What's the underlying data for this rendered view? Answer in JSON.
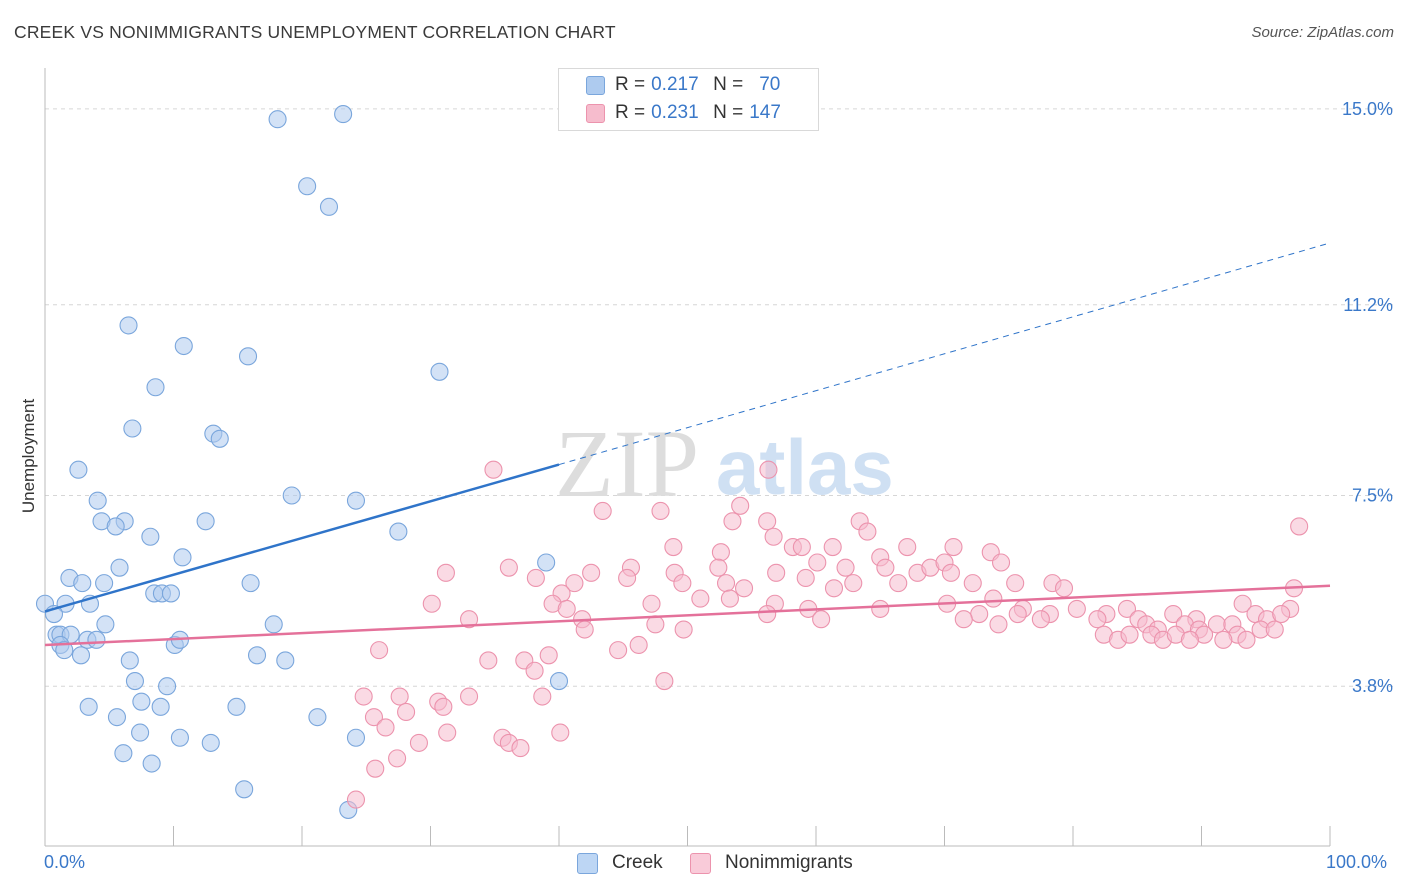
{
  "title": "CREEK VS NONIMMIGRANTS UNEMPLOYMENT CORRELATION CHART",
  "source": "Source: ZipAtlas.com",
  "watermark": {
    "zip": "ZIP",
    "atlas": "atlas"
  },
  "legend_top": [
    {
      "r_label": "R =",
      "r_value": "0.217",
      "n_label": "N =",
      "n_value": "70"
    },
    {
      "r_label": "R =",
      "r_value": "0.231",
      "n_label": "N =",
      "n_value": "147"
    }
  ],
  "legend_bottom": [
    {
      "label": "Creek"
    },
    {
      "label": "Nonimmigrants"
    }
  ],
  "x_tick_labels": {
    "min": "0.0%",
    "max": "100.0%"
  },
  "chart_data": {
    "type": "scatter",
    "xlabel": "",
    "ylabel": "Unemployment",
    "xlim": [
      0,
      100
    ],
    "ylim": [
      0.7,
      15.6
    ],
    "x_ticks": [
      0,
      10,
      20,
      30,
      40,
      50,
      60,
      70,
      80,
      90,
      100
    ],
    "y_ticks": [
      {
        "value": 3.8,
        "label": "3.8%"
      },
      {
        "value": 7.5,
        "label": "7.5%"
      },
      {
        "value": 11.2,
        "label": "11.2%"
      },
      {
        "value": 15.0,
        "label": "15.0%"
      }
    ],
    "grid": true,
    "series": [
      {
        "name": "Creek",
        "color": "#aecbef",
        "stroke": "#7aa6dc",
        "line_color": "#2f74c9",
        "trend": {
          "x0": 0,
          "y0": 5.25,
          "x1": 40,
          "y1": 8.1,
          "dashed_to_x": 100,
          "dashed_to_y": 12.4
        },
        "points": [
          [
            18.1,
            14.8
          ],
          [
            23.2,
            14.9
          ],
          [
            20.4,
            13.5
          ],
          [
            22.1,
            13.1
          ],
          [
            6.5,
            10.8
          ],
          [
            10.8,
            10.4
          ],
          [
            15.8,
            10.2
          ],
          [
            30.7,
            9.9
          ],
          [
            8.6,
            9.6
          ],
          [
            6.8,
            8.8
          ],
          [
            13.1,
            8.7
          ],
          [
            13.6,
            8.6
          ],
          [
            2.6,
            8.0
          ],
          [
            4.1,
            7.4
          ],
          [
            19.2,
            7.5
          ],
          [
            24.2,
            7.4
          ],
          [
            4.4,
            7.0
          ],
          [
            6.2,
            7.0
          ],
          [
            12.5,
            7.0
          ],
          [
            5.5,
            6.9
          ],
          [
            8.2,
            6.7
          ],
          [
            27.5,
            6.8
          ],
          [
            10.7,
            6.3
          ],
          [
            39.0,
            6.2
          ],
          [
            1.9,
            5.9
          ],
          [
            2.9,
            5.8
          ],
          [
            4.6,
            5.8
          ],
          [
            5.8,
            6.1
          ],
          [
            16.0,
            5.8
          ],
          [
            8.5,
            5.6
          ],
          [
            9.1,
            5.6
          ],
          [
            9.8,
            5.6
          ],
          [
            1.6,
            5.4
          ],
          [
            3.5,
            5.4
          ],
          [
            0.0,
            5.4
          ],
          [
            0.7,
            5.2
          ],
          [
            4.7,
            5.0
          ],
          [
            17.8,
            5.0
          ],
          [
            0.9,
            4.8
          ],
          [
            1.2,
            4.8
          ],
          [
            2.0,
            4.8
          ],
          [
            3.3,
            4.7
          ],
          [
            4.0,
            4.7
          ],
          [
            10.1,
            4.6
          ],
          [
            10.5,
            4.7
          ],
          [
            1.2,
            4.6
          ],
          [
            1.5,
            4.5
          ],
          [
            2.8,
            4.4
          ],
          [
            6.6,
            4.3
          ],
          [
            16.5,
            4.4
          ],
          [
            18.7,
            4.3
          ],
          [
            7.0,
            3.9
          ],
          [
            9.5,
            3.8
          ],
          [
            40.0,
            3.9
          ],
          [
            3.4,
            3.4
          ],
          [
            7.5,
            3.5
          ],
          [
            9.0,
            3.4
          ],
          [
            14.9,
            3.4
          ],
          [
            5.6,
            3.2
          ],
          [
            21.2,
            3.2
          ],
          [
            7.4,
            2.9
          ],
          [
            10.5,
            2.8
          ],
          [
            12.9,
            2.7
          ],
          [
            24.2,
            2.8
          ],
          [
            6.1,
            2.5
          ],
          [
            8.3,
            2.3
          ],
          [
            15.5,
            1.8
          ],
          [
            23.6,
            1.4
          ]
        ]
      },
      {
        "name": "Nonimmigrants",
        "color": "#f6bccd",
        "stroke": "#ec93ad",
        "line_color": "#e4719a",
        "trend": {
          "x0": 0,
          "y0": 4.6,
          "x1": 100,
          "y1": 5.75
        },
        "points": [
          [
            34.9,
            8.0
          ],
          [
            56.3,
            8.0
          ],
          [
            43.4,
            7.2
          ],
          [
            47.9,
            7.2
          ],
          [
            54.1,
            7.3
          ],
          [
            53.5,
            7.0
          ],
          [
            56.2,
            7.0
          ],
          [
            63.4,
            7.0
          ],
          [
            64.0,
            6.8
          ],
          [
            56.7,
            6.7
          ],
          [
            97.6,
            6.9
          ],
          [
            48.9,
            6.5
          ],
          [
            52.6,
            6.4
          ],
          [
            58.2,
            6.5
          ],
          [
            58.9,
            6.5
          ],
          [
            61.3,
            6.5
          ],
          [
            65.0,
            6.3
          ],
          [
            67.1,
            6.5
          ],
          [
            70.7,
            6.5
          ],
          [
            73.6,
            6.4
          ],
          [
            36.1,
            6.1
          ],
          [
            45.6,
            6.1
          ],
          [
            49.0,
            6.0
          ],
          [
            52.4,
            6.1
          ],
          [
            56.9,
            6.0
          ],
          [
            60.1,
            6.2
          ],
          [
            62.3,
            6.1
          ],
          [
            65.4,
            6.1
          ],
          [
            67.9,
            6.0
          ],
          [
            68.9,
            6.1
          ],
          [
            70.0,
            6.2
          ],
          [
            70.5,
            6.0
          ],
          [
            74.4,
            6.2
          ],
          [
            31.2,
            6.0
          ],
          [
            42.5,
            6.0
          ],
          [
            45.3,
            5.9
          ],
          [
            38.2,
            5.9
          ],
          [
            41.2,
            5.8
          ],
          [
            49.6,
            5.8
          ],
          [
            53.0,
            5.8
          ],
          [
            54.4,
            5.7
          ],
          [
            59.2,
            5.9
          ],
          [
            61.4,
            5.7
          ],
          [
            62.9,
            5.8
          ],
          [
            66.4,
            5.8
          ],
          [
            72.2,
            5.8
          ],
          [
            75.5,
            5.8
          ],
          [
            78.4,
            5.8
          ],
          [
            79.3,
            5.7
          ],
          [
            97.2,
            5.7
          ],
          [
            40.2,
            5.6
          ],
          [
            30.1,
            5.4
          ],
          [
            47.2,
            5.4
          ],
          [
            51.0,
            5.5
          ],
          [
            53.3,
            5.5
          ],
          [
            56.8,
            5.4
          ],
          [
            73.8,
            5.5
          ],
          [
            70.2,
            5.4
          ],
          [
            39.5,
            5.4
          ],
          [
            40.6,
            5.3
          ],
          [
            56.2,
            5.2
          ],
          [
            59.4,
            5.3
          ],
          [
            65.0,
            5.3
          ],
          [
            76.1,
            5.3
          ],
          [
            80.3,
            5.3
          ],
          [
            84.2,
            5.3
          ],
          [
            93.2,
            5.4
          ],
          [
            96.9,
            5.3
          ],
          [
            33.0,
            5.1
          ],
          [
            41.8,
            5.1
          ],
          [
            47.5,
            5.0
          ],
          [
            60.4,
            5.1
          ],
          [
            72.7,
            5.2
          ],
          [
            75.7,
            5.2
          ],
          [
            78.2,
            5.2
          ],
          [
            82.6,
            5.2
          ],
          [
            85.1,
            5.1
          ],
          [
            87.8,
            5.2
          ],
          [
            89.6,
            5.1
          ],
          [
            94.2,
            5.2
          ],
          [
            95.1,
            5.1
          ],
          [
            96.2,
            5.2
          ],
          [
            71.5,
            5.1
          ],
          [
            77.5,
            5.1
          ],
          [
            81.9,
            5.1
          ],
          [
            85.7,
            5.0
          ],
          [
            88.7,
            5.0
          ],
          [
            91.2,
            5.0
          ],
          [
            92.4,
            5.0
          ],
          [
            42.0,
            4.9
          ],
          [
            49.7,
            4.9
          ],
          [
            74.2,
            5.0
          ],
          [
            86.6,
            4.9
          ],
          [
            89.8,
            4.9
          ],
          [
            90.2,
            4.8
          ],
          [
            92.8,
            4.8
          ],
          [
            94.6,
            4.9
          ],
          [
            95.7,
            4.9
          ],
          [
            82.4,
            4.8
          ],
          [
            83.5,
            4.7
          ],
          [
            84.4,
            4.8
          ],
          [
            86.1,
            4.8
          ],
          [
            87.0,
            4.7
          ],
          [
            88.0,
            4.8
          ],
          [
            89.1,
            4.7
          ],
          [
            91.7,
            4.7
          ],
          [
            93.5,
            4.7
          ],
          [
            46.2,
            4.6
          ],
          [
            44.6,
            4.5
          ],
          [
            26.0,
            4.5
          ],
          [
            34.5,
            4.3
          ],
          [
            37.3,
            4.3
          ],
          [
            39.2,
            4.4
          ],
          [
            38.1,
            4.1
          ],
          [
            48.2,
            3.9
          ],
          [
            38.7,
            3.6
          ],
          [
            24.8,
            3.6
          ],
          [
            27.6,
            3.6
          ],
          [
            30.6,
            3.5
          ],
          [
            33.0,
            3.6
          ],
          [
            31.0,
            3.4
          ],
          [
            25.6,
            3.2
          ],
          [
            28.1,
            3.3
          ],
          [
            26.5,
            3.0
          ],
          [
            31.3,
            2.9
          ],
          [
            35.6,
            2.8
          ],
          [
            40.1,
            2.9
          ],
          [
            29.1,
            2.7
          ],
          [
            36.1,
            2.7
          ],
          [
            37.0,
            2.6
          ],
          [
            27.4,
            2.4
          ],
          [
            25.7,
            2.2
          ],
          [
            24.2,
            1.6
          ]
        ]
      }
    ]
  }
}
